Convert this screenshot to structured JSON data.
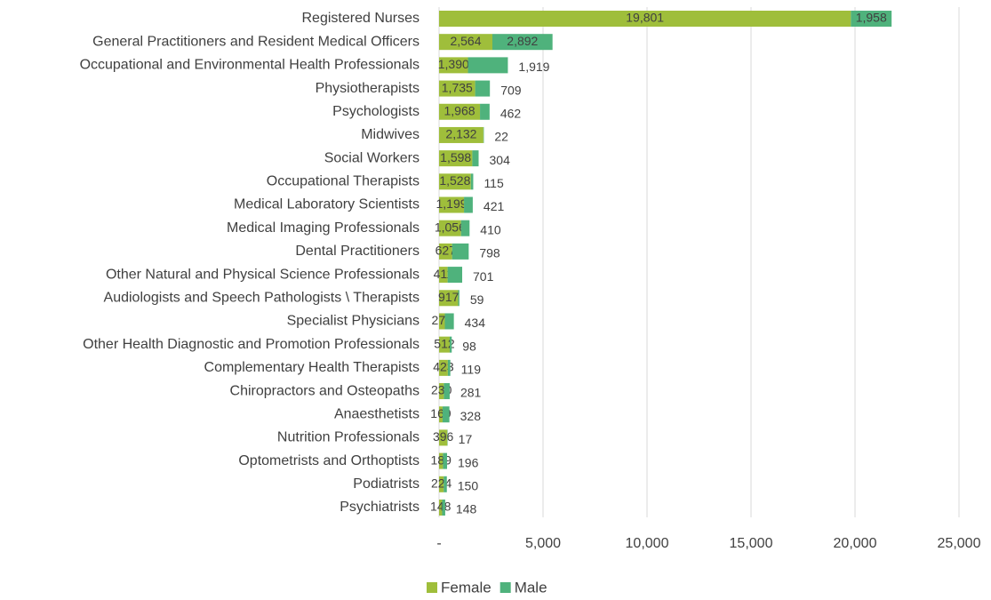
{
  "chart_data": {
    "type": "bar",
    "orientation": "horizontal",
    "stacked": true,
    "categories": [
      "Registered Nurses",
      "General Practitioners and Resident Medical Officers",
      "Occupational and Environmental Health Professionals",
      "Physiotherapists",
      "Psychologists",
      "Midwives",
      "Social Workers",
      "Occupational Therapists",
      "Medical Laboratory Scientists",
      "Medical Imaging Professionals",
      "Dental Practitioners",
      "Other Natural and Physical Science Professionals",
      "Audiologists and Speech Pathologists \\ Therapists",
      "Specialist Physicians",
      "Other Health Diagnostic and Promotion Professionals",
      "Complementary Health Therapists",
      "Chiropractors and Osteopaths",
      "Anaesthetists",
      "Nutrition Professionals",
      "Optometrists and Orthoptists",
      "Podiatrists",
      "Psychiatrists"
    ],
    "series": [
      {
        "name": "Female",
        "color": "#9fbe3b",
        "values": [
          19801,
          2564,
          1390,
          1735,
          1968,
          2132,
          1598,
          1528,
          1199,
          1056,
          627,
          411,
          917,
          277,
          512,
          423,
          230,
          169,
          396,
          189,
          224,
          148
        ],
        "value_labels": [
          "19,801",
          "2,564",
          "1,390",
          "1,735",
          "1,968",
          "2,132",
          "1,598",
          "1,528",
          "1,199",
          "1,056",
          "627",
          "411",
          "917",
          "277",
          "512",
          "423",
          "230",
          "169",
          "396",
          "189",
          "224",
          "148"
        ]
      },
      {
        "name": "Male",
        "color": "#4fb27c",
        "values": [
          1958,
          2892,
          1919,
          709,
          462,
          22,
          304,
          115,
          421,
          410,
          798,
          701,
          59,
          434,
          98,
          119,
          281,
          328,
          17,
          196,
          150,
          148
        ],
        "value_labels": [
          "1,958",
          "2,892",
          "1,919",
          "709",
          "462",
          "22",
          "304",
          "115",
          "421",
          "410",
          "798",
          "701",
          "59",
          "434",
          "98",
          "119",
          "281",
          "328",
          "17",
          "196",
          "150",
          "148"
        ]
      }
    ],
    "xlim": [
      0,
      25000
    ],
    "xticks": [
      {
        "value": 0,
        "label": "-"
      },
      {
        "value": 5000,
        "label": "5,000"
      },
      {
        "value": 10000,
        "label": "10,000"
      },
      {
        "value": 15000,
        "label": "15,000"
      },
      {
        "value": 20000,
        "label": "20,000"
      },
      {
        "value": 25000,
        "label": "25,000"
      }
    ],
    "grid": true,
    "legend": "bottom"
  }
}
